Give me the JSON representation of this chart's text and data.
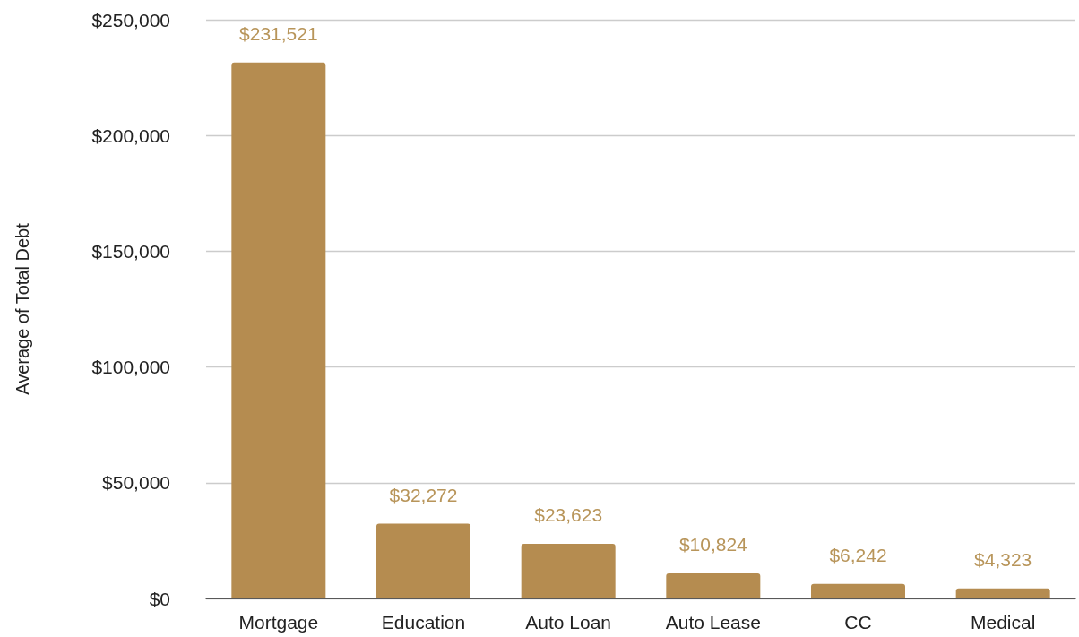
{
  "chart_data": {
    "type": "bar",
    "ylabel": "Average of Total Debt",
    "categories": [
      "Mortgage",
      "Education",
      "Auto Loan",
      "Auto Lease",
      "CC",
      "Medical"
    ],
    "values": [
      231521,
      32272,
      23623,
      10824,
      6242,
      4323
    ],
    "value_labels": [
      "$231,521",
      "$32,272",
      "$23,623",
      "$10,824",
      "$6,242",
      "$4,323"
    ],
    "color": "#b58c50",
    "ylim": [
      0,
      250000
    ],
    "yticks": [
      {
        "value": 0,
        "label": "$0"
      },
      {
        "value": 50000,
        "label": "$50,000"
      },
      {
        "value": 100000,
        "label": "$100,000"
      },
      {
        "value": 150000,
        "label": "$150,000"
      },
      {
        "value": 200000,
        "label": "$200,000"
      },
      {
        "value": 250000,
        "label": "$250,000"
      }
    ],
    "grid": "y"
  }
}
